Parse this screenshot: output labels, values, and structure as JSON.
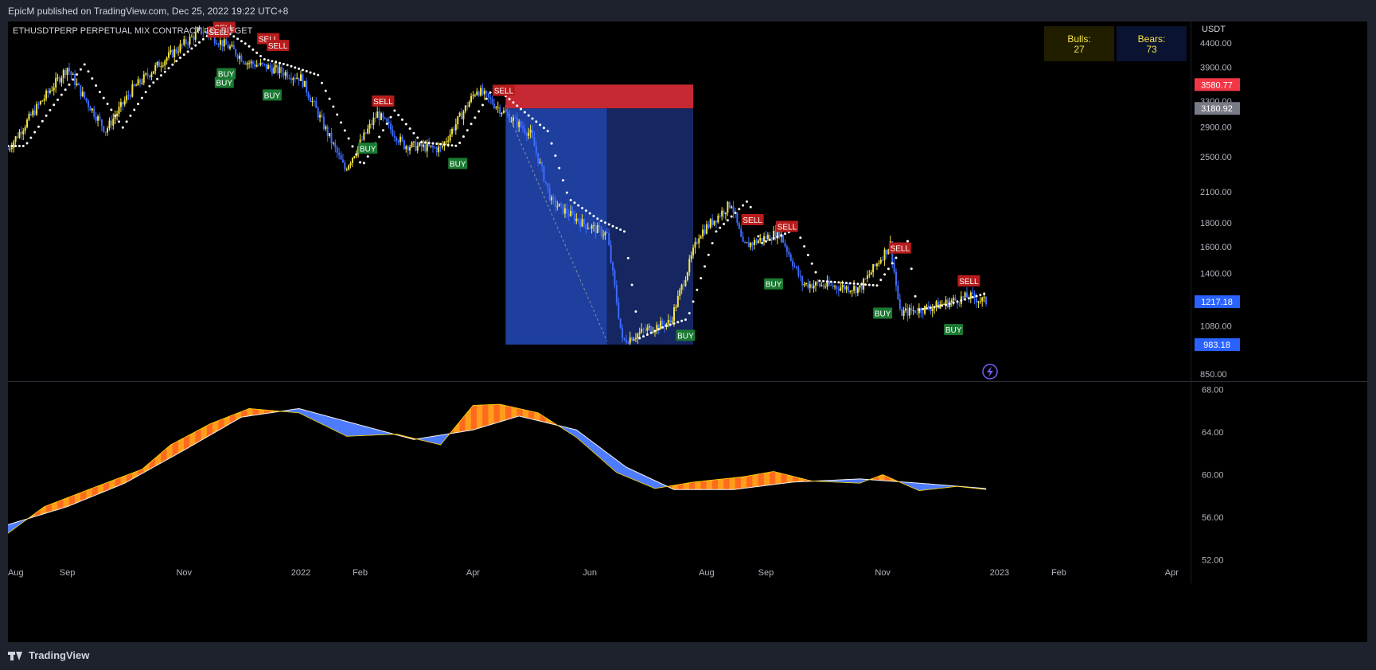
{
  "header": {
    "published_text": "EpicM published on TradingView.com, Dec 25, 2022 19:22 UTC+8"
  },
  "footer": {
    "brand": "TradingView"
  },
  "chart": {
    "symbol_label": "ETHUSDTPERP PERPETUAL MIX CONTRACT, 1D, BITGET",
    "currency": "USDT",
    "bulls_label": "Bulls:",
    "bulls_value": "27",
    "bears_label": "Bears:",
    "bears_value": "73"
  },
  "colors": {
    "background": "#000000",
    "panel": "#1e222d",
    "text": "#d1d4dc",
    "candle_up": "#f5e642",
    "candle_down": "#3d6bff",
    "sell": "#b71c1c",
    "buy": "#1b7a32",
    "short_stop": "#c62834",
    "short_target": "#1e3f9e",
    "last_price": "#2962ff",
    "stop_price": "#f23645",
    "entry_price": "#787b86"
  },
  "chart_data": [
    {
      "type": "line",
      "title": "ETHUSDTPERP PERPETUAL MIX CONTRACT, 1D, BITGET",
      "y_scale": "log",
      "ylim": [
        820,
        4900
      ],
      "y_ticks": [
        4400,
        3900,
        3300,
        2900,
        2500,
        2100,
        1800,
        1600,
        1400,
        1080,
        850
      ],
      "y_tick_labels": [
        "4400.00",
        "3900.00",
        "3300.00",
        "2900.00",
        "2500.00",
        "2100.00",
        "1800.00",
        "1600.00",
        "1400.00",
        "1080.00",
        "850.00"
      ],
      "x_ticks": [
        "Aug",
        "Sep",
        "Nov",
        "2022",
        "Feb",
        "Apr",
        "Jun",
        "Aug",
        "Sep",
        "Nov",
        "2023",
        "Feb",
        "Apr"
      ],
      "x_tick_dates": [
        "2021-08-01",
        "2021-09-01",
        "2021-11-01",
        "2022-01-01",
        "2022-02-01",
        "2022-04-01",
        "2022-06-01",
        "2022-08-01",
        "2022-09-01",
        "2022-11-01",
        "2023-01-01",
        "2023-02-01",
        "2023-04-01"
      ],
      "xlim": [
        "2021-08-01",
        "2023-04-10"
      ],
      "series": [
        {
          "values": [
            {
              "x": "2021-08-01",
              "y": 2600
            },
            {
              "x": "2021-08-15",
              "y": 3150
            },
            {
              "x": "2021-09-01",
              "y": 3900
            },
            {
              "x": "2021-09-08",
              "y": 3450
            },
            {
              "x": "2021-09-21",
              "y": 2850
            },
            {
              "x": "2021-10-05",
              "y": 3500
            },
            {
              "x": "2021-10-20",
              "y": 4000
            },
            {
              "x": "2021-11-10",
              "y": 4700
            },
            {
              "x": "2021-11-25",
              "y": 4300
            },
            {
              "x": "2021-12-04",
              "y": 4000
            },
            {
              "x": "2021-12-15",
              "y": 3900
            },
            {
              "x": "2022-01-01",
              "y": 3700
            },
            {
              "x": "2022-01-10",
              "y": 3100
            },
            {
              "x": "2022-01-24",
              "y": 2350
            },
            {
              "x": "2022-02-10",
              "y": 3100
            },
            {
              "x": "2022-02-24",
              "y": 2650
            },
            {
              "x": "2022-03-15",
              "y": 2600
            },
            {
              "x": "2022-04-03",
              "y": 3500
            },
            {
              "x": "2022-04-20",
              "y": 3050
            },
            {
              "x": "2022-05-01",
              "y": 2800
            },
            {
              "x": "2022-05-12",
              "y": 2000
            },
            {
              "x": "2022-05-28",
              "y": 1800
            },
            {
              "x": "2022-06-10",
              "y": 1700
            },
            {
              "x": "2022-06-18",
              "y": 1000
            },
            {
              "x": "2022-07-01",
              "y": 1060
            },
            {
              "x": "2022-07-13",
              "y": 1100
            },
            {
              "x": "2022-07-28",
              "y": 1700
            },
            {
              "x": "2022-08-14",
              "y": 1990
            },
            {
              "x": "2022-08-20",
              "y": 1600
            },
            {
              "x": "2022-09-08",
              "y": 1720
            },
            {
              "x": "2022-09-20",
              "y": 1330
            },
            {
              "x": "2022-10-20",
              "y": 1300
            },
            {
              "x": "2022-11-05",
              "y": 1620
            },
            {
              "x": "2022-11-10",
              "y": 1150
            },
            {
              "x": "2022-11-25",
              "y": 1180
            },
            {
              "x": "2022-12-16",
              "y": 1250
            },
            {
              "x": "2022-12-25",
              "y": 1217.18
            }
          ]
        }
      ],
      "price_labels": [
        {
          "value": 3580.77,
          "text": "3580.77",
          "kind": "stop"
        },
        {
          "value": 3180.92,
          "text": "3180.92",
          "kind": "entry"
        },
        {
          "value": 1217.18,
          "text": "1217.18",
          "kind": "last"
        },
        {
          "value": 983.18,
          "text": "983.18",
          "kind": "target"
        }
      ],
      "position": {
        "kind": "short",
        "start": "2022-04-18",
        "end": "2022-07-25",
        "split": "2022-06-10",
        "stop": 3580.77,
        "entry": 3180.92,
        "target": 983.18
      },
      "signals": [
        {
          "text": "SELL",
          "x": "2021-11-22",
          "y": 4760
        },
        {
          "text": "SELL",
          "x": "2021-11-19",
          "y": 4650
        },
        {
          "text": "SELL",
          "x": "2021-12-15",
          "y": 4500
        },
        {
          "text": "SELL",
          "x": "2021-12-20",
          "y": 4350
        },
        {
          "text": "BUY",
          "x": "2021-11-23",
          "y": 3780
        },
        {
          "text": "BUY",
          "x": "2021-11-22",
          "y": 3620
        },
        {
          "text": "BUY",
          "x": "2021-12-17",
          "y": 3400
        },
        {
          "text": "SELL",
          "x": "2022-02-13",
          "y": 3300
        },
        {
          "text": "SELL",
          "x": "2022-04-17",
          "y": 3480
        },
        {
          "text": "BUY",
          "x": "2022-02-05",
          "y": 2610
        },
        {
          "text": "BUY",
          "x": "2022-03-24",
          "y": 2420
        },
        {
          "text": "SELL",
          "x": "2022-08-25",
          "y": 1830
        },
        {
          "text": "SELL",
          "x": "2022-09-12",
          "y": 1770
        },
        {
          "text": "SELL",
          "x": "2022-11-10",
          "y": 1590
        },
        {
          "text": "SELL",
          "x": "2022-12-16",
          "y": 1350
        },
        {
          "text": "BUY",
          "x": "2022-07-21",
          "y": 1030
        },
        {
          "text": "BUY",
          "x": "2022-09-05",
          "y": 1330
        },
        {
          "text": "BUY",
          "x": "2022-11-01",
          "y": 1150
        },
        {
          "text": "BUY",
          "x": "2022-12-08",
          "y": 1060
        }
      ]
    },
    {
      "type": "area",
      "ylim": [
        51.6,
        68.4
      ],
      "y_ticks": [
        68,
        64,
        60,
        56,
        52
      ],
      "y_tick_labels": [
        "68.00",
        "64.00",
        "60.00",
        "56.00",
        "52.00"
      ],
      "series": [
        {
          "values": [
            {
              "x": "2021-08-01",
              "y": 54.5
            },
            {
              "x": "2021-08-20",
              "y": 57.0
            },
            {
              "x": "2021-09-15",
              "y": 58.8
            },
            {
              "x": "2021-10-10",
              "y": 60.5
            },
            {
              "x": "2021-10-25",
              "y": 62.8
            },
            {
              "x": "2021-11-15",
              "y": 64.8
            },
            {
              "x": "2021-12-05",
              "y": 66.2
            },
            {
              "x": "2021-12-31",
              "y": 65.8
            },
            {
              "x": "2022-01-25",
              "y": 63.6
            },
            {
              "x": "2022-02-20",
              "y": 63.8
            },
            {
              "x": "2022-03-15",
              "y": 62.8
            },
            {
              "x": "2022-04-01",
              "y": 66.5
            },
            {
              "x": "2022-04-15",
              "y": 66.6
            },
            {
              "x": "2022-05-05",
              "y": 65.8
            },
            {
              "x": "2022-05-25",
              "y": 63.5
            },
            {
              "x": "2022-06-15",
              "y": 60.2
            },
            {
              "x": "2022-07-05",
              "y": 58.7
            },
            {
              "x": "2022-07-25",
              "y": 59.3
            },
            {
              "x": "2022-08-20",
              "y": 59.8
            },
            {
              "x": "2022-09-05",
              "y": 60.3
            },
            {
              "x": "2022-09-25",
              "y": 59.4
            },
            {
              "x": "2022-10-20",
              "y": 59.2
            },
            {
              "x": "2022-11-01",
              "y": 60.0
            },
            {
              "x": "2022-11-20",
              "y": 58.5
            },
            {
              "x": "2022-12-10",
              "y": 58.9
            },
            {
              "x": "2022-12-25",
              "y": 58.6
            }
          ]
        },
        {
          "values": [
            {
              "x": "2021-08-01",
              "y": 55.3
            },
            {
              "x": "2021-09-01",
              "y": 57.0
            },
            {
              "x": "2021-10-01",
              "y": 59.2
            },
            {
              "x": "2021-11-01",
              "y": 62.3
            },
            {
              "x": "2021-12-01",
              "y": 65.4
            },
            {
              "x": "2021-12-31",
              "y": 66.2
            },
            {
              "x": "2022-01-31",
              "y": 64.7
            },
            {
              "x": "2022-03-01",
              "y": 63.3
            },
            {
              "x": "2022-04-01",
              "y": 64.2
            },
            {
              "x": "2022-04-25",
              "y": 65.5
            },
            {
              "x": "2022-05-25",
              "y": 64.2
            },
            {
              "x": "2022-06-20",
              "y": 60.7
            },
            {
              "x": "2022-07-15",
              "y": 58.6
            },
            {
              "x": "2022-08-15",
              "y": 58.6
            },
            {
              "x": "2022-09-15",
              "y": 59.3
            },
            {
              "x": "2022-10-20",
              "y": 59.6
            },
            {
              "x": "2022-11-20",
              "y": 59.2
            },
            {
              "x": "2022-12-25",
              "y": 58.7
            }
          ]
        }
      ]
    }
  ]
}
